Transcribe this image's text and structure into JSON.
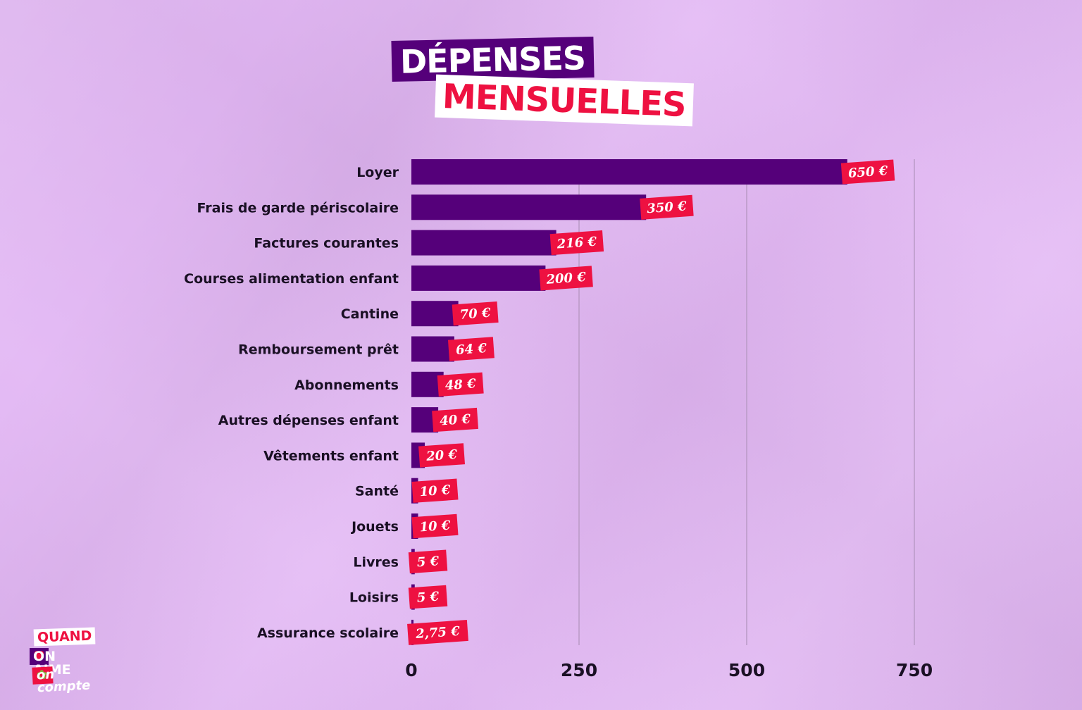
{
  "title": {
    "line1": "DÉPENSES",
    "line2": "MENSUELLES"
  },
  "logo": {
    "line1": "QUAND",
    "line2_a": "ON",
    "line2_heart": "♥",
    "line2_b": "AIME",
    "line3_a": "on",
    "line3_clover": "✿",
    "line3_b": "compte"
  },
  "colors": {
    "background": "#e2b6f4",
    "bar": "#55007a",
    "label_bg": "#ee1141",
    "label_text": "#ffffff",
    "text": "#1a1024",
    "grid": "#b99ac6"
  },
  "chart_data": {
    "type": "bar",
    "orientation": "horizontal",
    "categories": [
      "Loyer",
      "Frais de garde périscolaire",
      "Factures courantes",
      "Courses alimentation enfant",
      "Cantine",
      "Remboursement prêt",
      "Abonnements",
      "Autres dépenses enfant",
      "Vêtements enfant",
      "Santé",
      "Jouets",
      "Livres",
      "Loisirs",
      "Assurance scolaire"
    ],
    "values": [
      650,
      350,
      216,
      200,
      70,
      64,
      48,
      40,
      20,
      10,
      10,
      5,
      5,
      2.75
    ],
    "value_labels": [
      "650 €",
      "350 €",
      "216 €",
      "200 €",
      "70 €",
      "64 €",
      "48 €",
      "40 €",
      "20 €",
      "10 €",
      "10 €",
      "5 €",
      "5 €",
      "2,75 €"
    ],
    "xlim": [
      0,
      750
    ],
    "x_ticks": [
      0,
      250,
      500,
      750
    ],
    "x_tick_labels": [
      "0",
      "250",
      "500",
      "750"
    ],
    "grid": "vertical",
    "xlabel": "",
    "ylabel": ""
  }
}
